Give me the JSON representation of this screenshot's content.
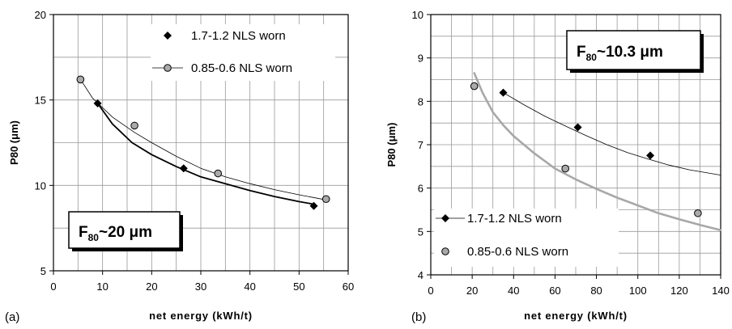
{
  "chart_data": [
    {
      "type": "scatter",
      "panel_label": "(a)",
      "title": "",
      "xlabel": "net energy (kWh/t)",
      "ylabel": "P80 (μm)",
      "xlim": [
        0,
        60
      ],
      "ylim": [
        5,
        20
      ],
      "x_ticks": [
        0,
        10,
        20,
        30,
        40,
        50,
        60
      ],
      "y_ticks": [
        5,
        10,
        15,
        20
      ],
      "grid": true,
      "legend_position": "top-right",
      "annotation": {
        "main": "F",
        "sub": "80",
        "rest": "~20 μm"
      },
      "series": [
        {
          "name": "1.7-1.2 NLS worn",
          "marker": "diamond",
          "color": "#000000",
          "points": [
            [
              9,
              14.8
            ],
            [
              26.5,
              11.0
            ],
            [
              53,
              8.8
            ]
          ],
          "fit": [
            [
              9,
              14.8
            ],
            [
              12,
              13.6
            ],
            [
              16,
              12.5
            ],
            [
              20,
              11.8
            ],
            [
              25,
              11.1
            ],
            [
              30,
              10.5
            ],
            [
              35,
              10.1
            ],
            [
              40,
              9.7
            ],
            [
              45,
              9.35
            ],
            [
              50,
              9.05
            ],
            [
              53,
              8.9
            ]
          ],
          "fit_color": "#000000",
          "fit_width": 1.8
        },
        {
          "name": "0.85-0.6 NLS worn",
          "marker": "circle",
          "color": "#aaaaaa",
          "points": [
            [
              5.5,
              16.2
            ],
            [
              16.5,
              13.5
            ],
            [
              33.5,
              10.7
            ],
            [
              55.5,
              9.2
            ]
          ],
          "fit": [
            [
              5.5,
              16.2
            ],
            [
              8,
              15.1
            ],
            [
              12,
              14.0
            ],
            [
              16.5,
              13.1
            ],
            [
              20,
              12.5
            ],
            [
              25,
              11.7
            ],
            [
              30,
              11.0
            ],
            [
              35,
              10.5
            ],
            [
              40,
              10.1
            ],
            [
              45,
              9.75
            ],
            [
              50,
              9.45
            ],
            [
              55.5,
              9.15
            ]
          ],
          "fit_color": "#000000",
          "fit_width": 0.8
        }
      ]
    },
    {
      "type": "scatter",
      "panel_label": "(b)",
      "title": "",
      "xlabel": "net energy (kWh/t)",
      "ylabel": "P80 (μm)",
      "xlim": [
        0,
        140
      ],
      "ylim": [
        4,
        10
      ],
      "x_ticks": [
        0,
        20,
        40,
        60,
        80,
        100,
        120,
        140
      ],
      "y_ticks": [
        4,
        5,
        6,
        7,
        8,
        9,
        10
      ],
      "grid": true,
      "legend_position": "bottom-left",
      "annotation": {
        "main": "F",
        "sub": "80",
        "rest": "~10.3 μm"
      },
      "series": [
        {
          "name": "1.7-1.2 NLS worn",
          "marker": "diamond",
          "color": "#000000",
          "points": [
            [
              35,
              8.2
            ],
            [
              71,
              7.4
            ],
            [
              106,
              6.75
            ]
          ],
          "fit": [
            [
              35,
              8.2
            ],
            [
              45,
              7.92
            ],
            [
              55,
              7.66
            ],
            [
              65,
              7.43
            ],
            [
              75,
              7.21
            ],
            [
              85,
              7.0
            ],
            [
              95,
              6.82
            ],
            [
              105,
              6.67
            ],
            [
              115,
              6.53
            ],
            [
              125,
              6.42
            ],
            [
              140,
              6.3
            ]
          ],
          "fit_color": "#000000",
          "fit_width": 0.8
        },
        {
          "name": "0.85-0.6 NLS worn",
          "marker": "circle",
          "color": "#aaaaaa",
          "points": [
            [
              21,
              8.35
            ],
            [
              65,
              6.45
            ],
            [
              129,
              5.42
            ]
          ],
          "fit": [
            [
              21,
              8.65
            ],
            [
              25,
              8.2
            ],
            [
              30,
              7.75
            ],
            [
              35,
              7.45
            ],
            [
              40,
              7.2
            ],
            [
              50,
              6.8
            ],
            [
              60,
              6.45
            ],
            [
              70,
              6.2
            ],
            [
              80,
              5.98
            ],
            [
              90,
              5.78
            ],
            [
              100,
              5.6
            ],
            [
              110,
              5.42
            ],
            [
              120,
              5.28
            ],
            [
              130,
              5.15
            ],
            [
              140,
              5.03
            ]
          ],
          "fit_color": "#a8a8a8",
          "fit_width": 2.6
        }
      ]
    }
  ]
}
